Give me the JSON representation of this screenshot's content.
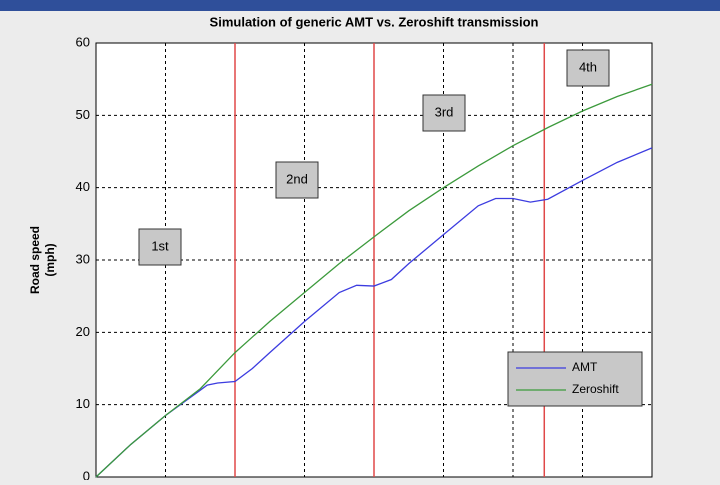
{
  "chart_data": {
    "type": "line",
    "title": "Simulation of generic AMT vs. Zeroshift transmission",
    "ylabel_lines": [
      "Road speed",
      "(mph)"
    ],
    "xlim": [
      0,
      8
    ],
    "xticks": [
      0,
      1,
      2,
      3,
      4,
      5,
      6,
      7,
      8
    ],
    "ylim": [
      0,
      60
    ],
    "yticks": [
      0,
      10,
      20,
      30,
      40,
      50,
      60
    ],
    "grid": true,
    "shift_lines": [
      2,
      4,
      6.45
    ],
    "shift_color": "#e04848",
    "annotations": [
      "1st",
      "2nd",
      "3rd",
      "4th"
    ],
    "legend": "lower right",
    "series": [
      {
        "name": "AMT",
        "color": "#3c3ce0",
        "x": [
          0,
          0.5,
          1,
          1.5,
          1.6,
          1.75,
          2,
          2.25,
          2.5,
          3,
          3.5,
          3.75,
          4,
          4.25,
          4.5,
          5,
          5.5,
          5.75,
          6,
          6.25,
          6.5,
          7,
          7.5,
          8
        ],
        "values": [
          0,
          4.5,
          8.5,
          12,
          12.7,
          13,
          13.2,
          15,
          17.2,
          21.5,
          25.5,
          26.5,
          26.4,
          27.3,
          29.5,
          33.5,
          37.5,
          38.5,
          38.5,
          38,
          38.4,
          41,
          43.5,
          45.5
        ]
      },
      {
        "name": "Zeroshift",
        "color": "#3c9a3c",
        "x": [
          0,
          0.5,
          1,
          1.5,
          2,
          2.5,
          3,
          3.5,
          4,
          4.5,
          5,
          5.5,
          6,
          6.5,
          7,
          7.5,
          8
        ],
        "values": [
          0,
          4.5,
          8.5,
          12.2,
          17.2,
          21.5,
          25.5,
          29.5,
          33.2,
          36.8,
          40,
          43,
          45.8,
          48.3,
          50.6,
          52.6,
          54.3
        ]
      }
    ]
  }
}
